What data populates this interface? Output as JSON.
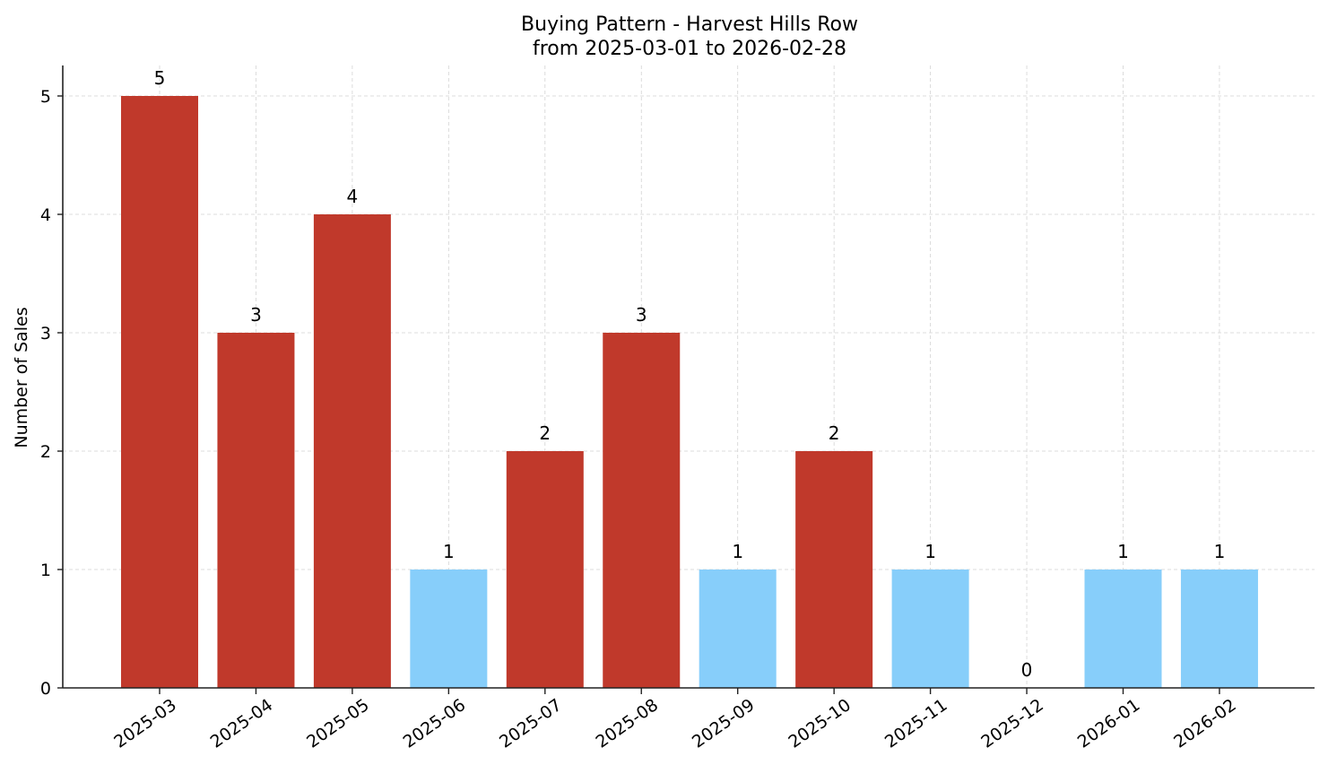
{
  "chart_data": {
    "type": "bar",
    "title": "Buying Pattern - Harvest Hills Row",
    "subtitle": "from 2025-03-01 to 2026-02-28",
    "xlabel": "",
    "ylabel": "Number of Sales",
    "categories": [
      "2025-03",
      "2025-04",
      "2025-05",
      "2025-06",
      "2025-07",
      "2025-08",
      "2025-09",
      "2025-10",
      "2025-11",
      "2025-12",
      "2026-01",
      "2026-02"
    ],
    "values": [
      5,
      3,
      4,
      1,
      2,
      3,
      1,
      2,
      1,
      0,
      1,
      1
    ],
    "bar_colors": [
      "#c0392b",
      "#c0392b",
      "#c0392b",
      "#87cefa",
      "#c0392b",
      "#c0392b",
      "#87cefa",
      "#c0392b",
      "#87cefa",
      "#87cefa",
      "#87cefa",
      "#87cefa"
    ],
    "data_labels": [
      "5",
      "3",
      "4",
      "1",
      "2",
      "3",
      "1",
      "2",
      "1",
      "0",
      "1",
      "1"
    ],
    "yticks": [
      0,
      1,
      2,
      3,
      4,
      5
    ],
    "ylim": [
      0,
      5.25
    ],
    "grid": true,
    "legend": null,
    "colors": {
      "high": "#c0392b",
      "low": "#87cefa",
      "grid": "#d3d3d3",
      "axis": "#222222"
    }
  }
}
